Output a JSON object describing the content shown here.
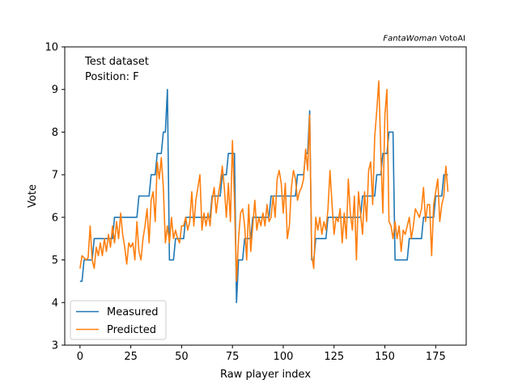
{
  "credit": {
    "brand": "FantaWoman",
    "product": "VotoAI"
  },
  "annotations": {
    "dataset": "Test dataset",
    "position": "Position: F"
  },
  "chart_data": {
    "type": "line",
    "title": "",
    "xlabel": "Raw player index",
    "ylabel": "Vote",
    "xlim": [
      -7.5,
      190
    ],
    "ylim": [
      3,
      10
    ],
    "xticks": [
      0,
      25,
      50,
      75,
      100,
      125,
      150,
      175
    ],
    "yticks": [
      3,
      4,
      5,
      6,
      7,
      8,
      9,
      10
    ],
    "grid": false,
    "legend_position": "lower-left",
    "series": [
      {
        "name": "Measured",
        "color": "#1f77b4",
        "values": [
          4.5,
          4.5,
          5.0,
          5.0,
          5.0,
          5.0,
          5.0,
          5.5,
          5.5,
          5.5,
          5.5,
          5.5,
          5.5,
          5.5,
          5.5,
          5.5,
          5.5,
          6.0,
          6.0,
          6.0,
          6.0,
          6.0,
          6.0,
          6.0,
          6.0,
          6.0,
          6.0,
          6.0,
          6.0,
          6.5,
          6.5,
          6.5,
          6.5,
          6.5,
          6.5,
          7.0,
          7.0,
          7.0,
          7.5,
          7.5,
          7.5,
          8.0,
          8.0,
          9.0,
          5.0,
          5.0,
          5.0,
          5.5,
          5.5,
          5.5,
          5.5,
          5.5,
          6.0,
          6.0,
          6.0,
          6.0,
          6.0,
          6.0,
          6.0,
          6.0,
          6.0,
          6.0,
          6.0,
          6.0,
          6.0,
          6.5,
          6.5,
          6.5,
          6.5,
          6.5,
          7.0,
          7.0,
          7.0,
          7.5,
          7.5,
          7.5,
          7.5,
          4.0,
          5.0,
          5.0,
          5.0,
          5.5,
          5.5,
          5.5,
          5.5,
          6.0,
          6.0,
          6.0,
          6.0,
          6.0,
          6.0,
          6.0,
          6.0,
          6.0,
          6.5,
          6.5,
          6.5,
          6.5,
          6.5,
          6.5,
          6.5,
          6.5,
          6.5,
          6.5,
          6.5,
          6.5,
          6.5,
          7.0,
          7.0,
          7.0,
          7.0,
          7.5,
          7.5,
          8.5,
          5.0,
          5.0,
          5.5,
          5.5,
          5.5,
          5.5,
          5.5,
          5.5,
          6.0,
          6.0,
          6.0,
          6.0,
          6.0,
          6.0,
          6.0,
          6.0,
          6.0,
          6.0,
          6.0,
          6.0,
          6.0,
          6.0,
          6.0,
          6.0,
          6.0,
          6.5,
          6.5,
          6.5,
          6.5,
          6.5,
          6.5,
          6.5,
          7.0,
          7.0,
          7.0,
          7.5,
          7.5,
          7.5,
          8.0,
          8.0,
          8.0,
          5.0,
          5.0,
          5.0,
          5.0,
          5.0,
          5.0,
          5.0,
          5.5,
          5.5,
          5.5,
          5.5,
          5.5,
          5.5,
          5.5,
          6.0,
          6.0,
          6.0,
          6.0,
          6.0,
          6.0,
          6.5,
          6.5,
          6.5,
          6.5,
          7.0,
          7.0,
          7.0
        ]
      },
      {
        "name": "Predicted",
        "color": "#ff7f0e",
        "values": [
          4.8,
          5.1,
          5.05,
          5.0,
          5.05,
          5.8,
          5.0,
          4.8,
          5.3,
          5.1,
          5.4,
          5.1,
          5.5,
          5.2,
          5.6,
          5.3,
          5.8,
          5.4,
          5.9,
          5.5,
          6.1,
          5.6,
          5.3,
          4.9,
          5.4,
          5.3,
          5.4,
          5.0,
          5.9,
          5.2,
          5.0,
          5.5,
          5.8,
          6.2,
          5.4,
          6.4,
          6.6,
          5.9,
          7.3,
          6.9,
          7.4,
          6.7,
          5.4,
          5.8,
          5.4,
          6.0,
          5.5,
          5.7,
          5.5,
          5.4,
          5.8,
          5.8,
          6.0,
          5.7,
          5.9,
          6.6,
          5.8,
          6.4,
          6.7,
          7.0,
          5.7,
          6.1,
          5.8,
          6.1,
          5.8,
          6.4,
          6.7,
          6.1,
          6.5,
          6.8,
          7.2,
          6.7,
          6.0,
          6.8,
          5.9,
          7.8,
          6.4,
          4.5,
          5.5,
          6.1,
          6.2,
          5.8,
          5.0,
          6.3,
          5.2,
          5.8,
          6.4,
          5.7,
          6.0,
          5.8,
          6.1,
          5.8,
          6.3,
          5.9,
          6.0,
          6.5,
          6.0,
          6.9,
          7.1,
          6.8,
          6.1,
          6.8,
          5.5,
          5.8,
          6.7,
          7.1,
          6.9,
          6.4,
          6.6,
          6.7,
          6.9,
          7.6,
          7.1,
          8.4,
          5.1,
          4.8,
          6.0,
          5.7,
          6.0,
          5.6,
          5.9,
          5.7,
          6.2,
          7.1,
          6.3,
          5.6,
          6.0,
          5.9,
          6.2,
          5.4,
          6.1,
          5.5,
          6.9,
          6.1,
          5.7,
          6.5,
          5.0,
          6.6,
          6.1,
          5.6,
          6.6,
          5.9,
          7.1,
          7.3,
          6.3,
          7.9,
          8.5,
          9.2,
          7.5,
          6.1,
          8.4,
          9.0,
          5.9,
          5.8,
          5.5,
          5.9,
          5.5,
          5.8,
          5.2,
          5.7,
          5.6,
          5.8,
          6.0,
          5.5,
          5.8,
          6.2,
          6.1,
          6.0,
          6.2,
          6.7,
          5.9,
          6.3,
          6.3,
          5.1,
          6.3,
          6.6,
          6.9,
          5.9,
          6.3,
          6.5,
          7.2,
          6.6
        ]
      }
    ]
  }
}
